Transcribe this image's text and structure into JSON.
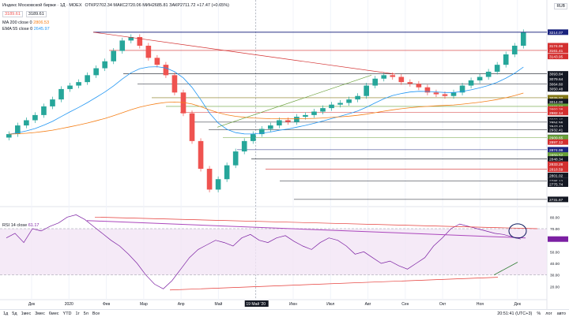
{
  "header": {
    "title": "Индекс Московской биржи · 1Д · MOEX",
    "price_box1": "3189.61",
    "price_box2": "3189.61",
    "ohlc": "ОТКР2702.34  МАКС2720.06  МИН2685.81  ЗАКР2711.72  +17.47 (+0.65%)",
    "currency": "RUB"
  },
  "indicators": {
    "ma200": {
      "label": "MA 200 close 0",
      "value": "2806.53",
      "color": "#f57f17"
    },
    "ema55": {
      "label": "EMA 55 close 0",
      "value": "2645.97",
      "color": "#2196f3"
    },
    "rsi": {
      "label": "RSI 14 close",
      "value": "61.17",
      "color": "#7b1fa2"
    }
  },
  "chart_data": [
    {
      "type": "candlestick",
      "title": "Индекс Московской биржи · 1Д · MOEX",
      "x": [
        "Дек",
        "2020",
        "Фев",
        "Мар",
        "Апр",
        "Май",
        "19 Май '20",
        "Июн",
        "Июл",
        "Авг",
        "Сен",
        "Окт",
        "Ноя",
        "Дек"
      ],
      "ylim": [
        2720,
        3250
      ],
      "price_levels": [
        "3214.07",
        "3174.99",
        "3161.41",
        "3143.95",
        "3093.84",
        "3079.64",
        "3064.60",
        "3050.48",
        "3025.02",
        "3014.00",
        "2999.93",
        "2992.28",
        "2982.14",
        "2962.46",
        "2954.56",
        "2943.43",
        "2932.41",
        "2910.40",
        "2909.65",
        "2897.12",
        "2874.99",
        "2859.52",
        "2848.34",
        "2833.28",
        "2818.59",
        "2801.02",
        "2785.12",
        "2775.74",
        "2731.67"
      ],
      "closes": [
        2920,
        2945,
        2960,
        2975,
        3000,
        3020,
        3050,
        3060,
        3070,
        3090,
        3110,
        3130,
        3160,
        3190,
        3200,
        3175,
        3140,
        3120,
        3090,
        3040,
        2980,
        2900,
        2820,
        2760,
        2790,
        2830,
        2870,
        2900,
        2920,
        2935,
        2945,
        2960,
        2955,
        2970,
        2975,
        2985,
        2995,
        3005,
        3010,
        3020,
        3030,
        3060,
        3080,
        3090,
        3085,
        3070,
        3065,
        3055,
        3040,
        3035,
        3030,
        3040,
        3060,
        3075,
        3085,
        3100,
        3120,
        3150,
        3175,
        3214
      ],
      "rsi": {
        "type": "line",
        "title": "RSI 14 close",
        "ylim": [
          10,
          85
        ],
        "levels": [
          "80.00",
          "70.00",
          "60.00",
          "50.00",
          "40.00",
          "30.00",
          "20.00"
        ],
        "values": [
          62,
          66,
          58,
          70,
          68,
          72,
          75,
          80,
          82,
          78,
          72,
          66,
          60,
          55,
          48,
          40,
          30,
          22,
          18,
          25,
          35,
          45,
          52,
          56,
          60,
          58,
          55,
          62,
          65,
          60,
          58,
          62,
          64,
          59,
          55,
          52,
          58,
          62,
          60,
          55,
          48,
          50,
          45,
          40,
          42,
          38,
          35,
          40,
          45,
          55,
          62,
          70,
          74,
          72,
          70,
          68,
          66,
          65,
          63,
          61
        ]
      }
    }
  ],
  "bottom_bar": {
    "ranges": [
      "1д",
      "5д",
      "1мес",
      "3мес",
      "6мес",
      "YTD",
      "1г",
      "5л",
      "Все"
    ],
    "time": "20:51:41 (UTC+3)",
    "pct": "%",
    "log": "лог",
    "auto": "авто"
  }
}
